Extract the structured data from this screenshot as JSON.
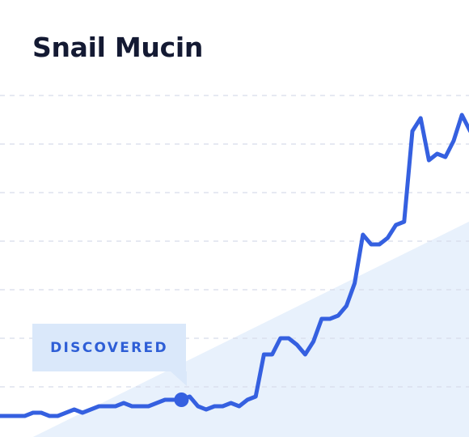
{
  "title": "Snail Mucin",
  "callout": {
    "label": "DISCOVERED"
  },
  "colors": {
    "line": "#3560e0",
    "grid": "#d8dcea",
    "area": "#e8f1fc",
    "callout_bg": "#dae8fa",
    "callout_text": "#2e5ed6",
    "title": "#141a33"
  },
  "chart_data": {
    "type": "line",
    "title": "Snail Mucin",
    "grid": true,
    "ylim": [
      0,
      100
    ],
    "discovered_index": 22,
    "trend_area": [
      [
        4,
        0
      ],
      [
        64,
        70
      ]
    ],
    "series": [
      {
        "values": [
          1,
          1,
          1,
          1,
          2,
          2,
          1,
          1,
          2,
          3,
          2,
          3,
          4,
          4,
          4,
          5,
          4,
          4,
          4,
          5,
          6,
          6,
          6,
          7,
          4,
          3,
          4,
          4,
          5,
          4,
          6,
          7,
          20,
          20,
          25,
          25,
          23,
          20,
          24,
          31,
          31,
          32,
          35,
          42,
          57,
          54,
          54,
          56,
          60,
          61,
          89,
          93,
          80,
          82,
          81,
          86,
          94,
          89
        ]
      }
    ]
  }
}
